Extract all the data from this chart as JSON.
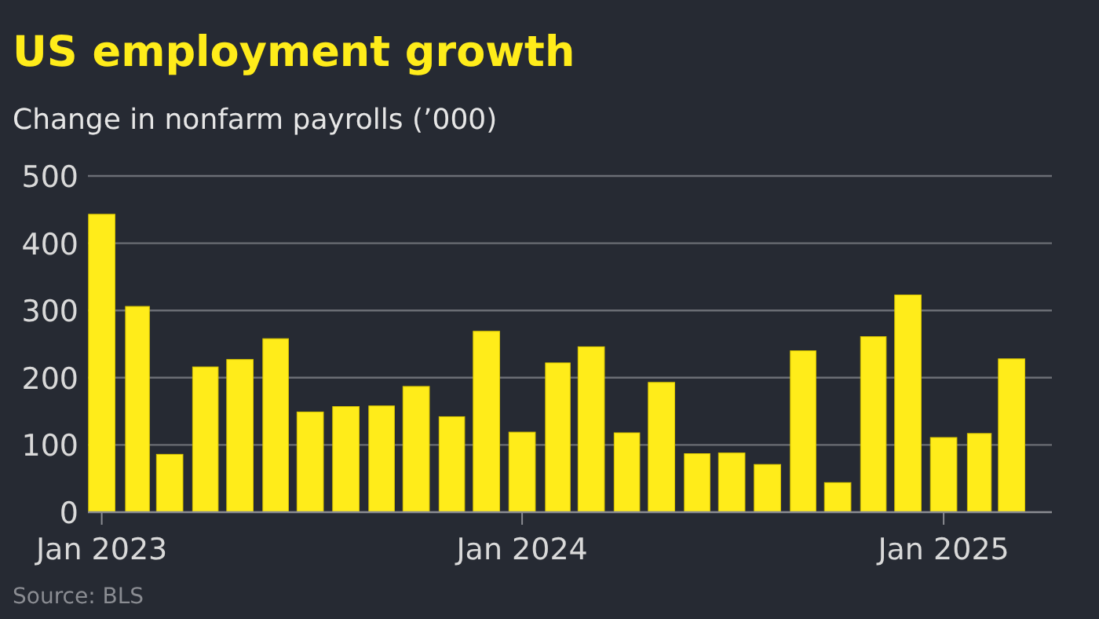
{
  "chart_data": {
    "type": "bar",
    "title": "US employment growth",
    "subtitle": "Change in nonfarm payrolls (’000)",
    "annotations": [
      "Source: BLS"
    ],
    "x": [
      "2023-01",
      "2023-02",
      "2023-03",
      "2023-04",
      "2023-05",
      "2023-06",
      "2023-07",
      "2023-08",
      "2023-09",
      "2023-10",
      "2023-11",
      "2023-12",
      "2024-01",
      "2024-02",
      "2024-03",
      "2024-04",
      "2024-05",
      "2024-06",
      "2024-07",
      "2024-08",
      "2024-09",
      "2024-10",
      "2024-11",
      "2024-12",
      "2025-01",
      "2025-02",
      "2025-03"
    ],
    "values": [
      443,
      306,
      86,
      216,
      227,
      258,
      149,
      157,
      158,
      187,
      142,
      269,
      119,
      222,
      246,
      118,
      193,
      87,
      88,
      71,
      240,
      44,
      261,
      323,
      111,
      117,
      228
    ],
    "color": "#ffec1a",
    "ylim": [
      0,
      500
    ],
    "yticks": [
      0,
      100,
      200,
      300,
      400,
      500
    ],
    "xlim": [
      "2022-12-20",
      "2025-04-05"
    ],
    "xticks": [
      {
        "value": "2023-01",
        "label": "Jan 2023"
      },
      {
        "value": "2024-01",
        "label": "Jan 2024"
      },
      {
        "value": "2025-01",
        "label": "Jan 2025"
      }
    ],
    "grid": "y"
  }
}
